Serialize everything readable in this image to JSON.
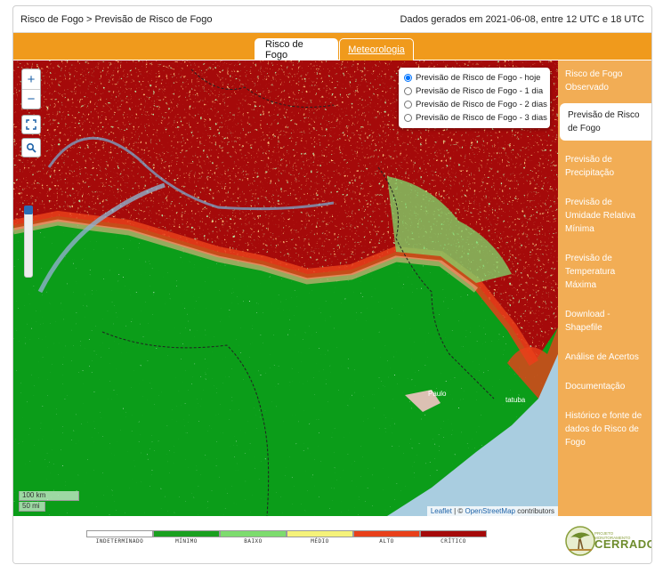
{
  "header": {
    "breadcrumb": "Risco de Fogo > Previsão de Risco de Fogo",
    "generated": "Dados gerados em 2021-06-08, entre 12 UTC e 18 UTC"
  },
  "tabs": [
    {
      "label": "Risco de Fogo",
      "active": true
    },
    {
      "label": "Meteorologia",
      "active": false
    }
  ],
  "sidebar": {
    "items": [
      {
        "label": "Risco de Fogo Observado",
        "active": false
      },
      {
        "label": "Previsão de Risco de Fogo",
        "active": true
      },
      {
        "label": "Previsão de Precipitação",
        "active": false
      },
      {
        "label": "Previsão de Umidade Relativa Mínima",
        "active": false
      },
      {
        "label": "Previsão de Temperatura Máxima",
        "active": false
      },
      {
        "label": "Download - Shapefile",
        "active": false
      },
      {
        "label": "Análise de Acertos",
        "active": false
      },
      {
        "label": "Documentação",
        "active": false
      },
      {
        "label": "Histórico e fonte de dados do Risco de Fogo",
        "active": false
      }
    ]
  },
  "map": {
    "zoom_in": "+",
    "zoom_out": "−",
    "forecast_options": [
      {
        "label": "Previsão de Risco de Fogo - hoje",
        "checked": true
      },
      {
        "label": "Previsão de Risco de Fogo - 1 dia",
        "checked": false
      },
      {
        "label": "Previsão de Risco de Fogo - 2 dias",
        "checked": false
      },
      {
        "label": "Previsão de Risco de Fogo - 3 dias",
        "checked": false
      }
    ],
    "scale_km": "100 km",
    "scale_mi": "50 mi",
    "attribution": {
      "leaflet": "Leaflet",
      "sep": " | © ",
      "osm": "OpenStreetMap",
      "tail": " contributors"
    },
    "place_labels": [
      "Paulo",
      "tatuba"
    ]
  },
  "legend": {
    "classes": [
      {
        "label": "INDETERMINADO",
        "color": "#ffffff"
      },
      {
        "label": "MÍNIMO",
        "color": "#1aa01f"
      },
      {
        "label": "BAIXO",
        "color": "#7ddc6e"
      },
      {
        "label": "MÉDIO",
        "color": "#f5f27a"
      },
      {
        "label": "ALTO",
        "color": "#e8401a"
      },
      {
        "label": "CRÍTICO",
        "color": "#a50a0a"
      }
    ]
  },
  "logo": {
    "small": "PROJETO MONITORAMENTO",
    "name": "CERRADO"
  },
  "colors": {
    "accent": "#f09a1c",
    "sidebar": "#f2ad55",
    "risk_critical": "#a50a0a",
    "risk_min": "#0b9d19",
    "ocean": "#a9cde0"
  }
}
